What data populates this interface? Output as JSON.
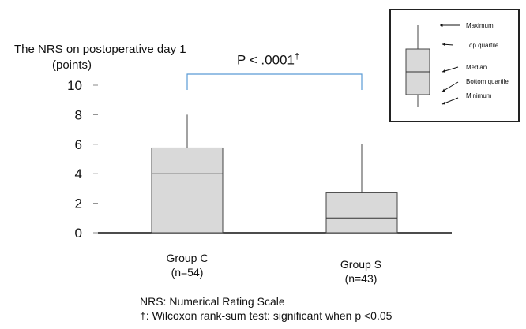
{
  "chart_data": {
    "type": "box",
    "ylabel_line1": "The NRS on postoperative day 1",
    "ylabel_line2": "(points)",
    "ylim": [
      0,
      10
    ],
    "yticks": [
      "0",
      "2",
      "4",
      "6",
      "8",
      "10"
    ],
    "grid": false,
    "significance": {
      "text": "P < .0001",
      "mark": "†"
    },
    "groups": [
      {
        "name": "Group C",
        "n_label": "(n=54)",
        "min": 0,
        "q1": 0,
        "median": 4,
        "q3": 5.75,
        "max": 8
      },
      {
        "name": "Group S",
        "n_label": "(n=43)",
        "min": 0,
        "q1": 0,
        "median": 1,
        "q3": 2.75,
        "max": 6
      }
    ],
    "box_fill": "#d9d9d9",
    "bracket_color": "#5b9bd5",
    "legend": {
      "placement": "top-right",
      "items": [
        "Maximum",
        "Top quartile",
        "Median",
        "Bottom quartile",
        "Minimum"
      ]
    }
  },
  "notes": {
    "line1": "NRS: Numerical Rating Scale",
    "line2": "†: Wilcoxon rank-sum test: significant when p <0.05"
  }
}
